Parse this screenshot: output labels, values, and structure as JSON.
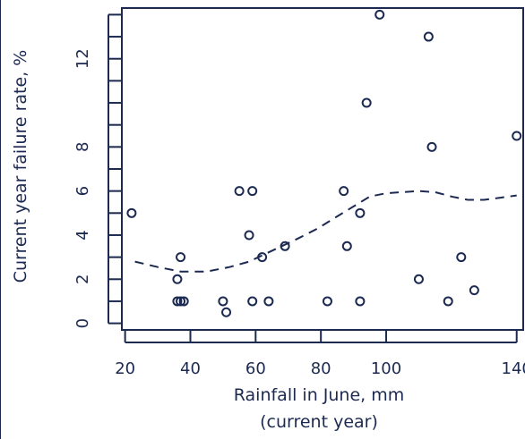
{
  "chart_data": {
    "type": "scatter",
    "xlabel": "Rainfall in June, mm",
    "xlabel_sub": "(current year)",
    "ylabel": "Current year failure rate, %",
    "xlim": [
      19,
      142
    ],
    "ylim": [
      -0.3,
      14.3
    ],
    "xticks": [
      20,
      40,
      60,
      80,
      100,
      140
    ],
    "yticks": [
      0,
      2,
      4,
      6,
      8,
      12
    ],
    "yminor": [
      1,
      3,
      5,
      7,
      9,
      10,
      11,
      13,
      14
    ],
    "grid": false,
    "legend": "none",
    "series": [
      {
        "kind": "points",
        "marker": "open-circle",
        "x": [
          22,
          36,
          36,
          37,
          37,
          38,
          50,
          51,
          55,
          59,
          58,
          59,
          62,
          64,
          69,
          82,
          87,
          88,
          92,
          92,
          94,
          98,
          110,
          113,
          114,
          119,
          123,
          127,
          140
        ],
        "y": [
          5,
          2,
          1,
          3,
          1,
          1,
          1,
          0.5,
          6,
          6,
          4,
          1,
          3,
          1,
          3.5,
          1,
          6,
          3.5,
          5,
          1,
          10,
          14,
          2,
          13,
          8,
          1,
          3,
          1.5,
          8.5
        ]
      },
      {
        "kind": "line",
        "style": "dashed",
        "x": [
          23,
          30,
          37,
          45,
          52,
          58,
          63,
          68,
          73,
          79,
          85,
          90,
          95,
          100,
          105,
          110,
          115,
          120,
          125,
          130,
          135,
          140
        ],
        "y": [
          2.8,
          2.55,
          2.35,
          2.35,
          2.55,
          2.8,
          3.15,
          3.5,
          3.85,
          4.3,
          4.85,
          5.3,
          5.75,
          5.9,
          5.95,
          6.0,
          5.95,
          5.75,
          5.6,
          5.6,
          5.7,
          5.8
        ]
      }
    ]
  }
}
